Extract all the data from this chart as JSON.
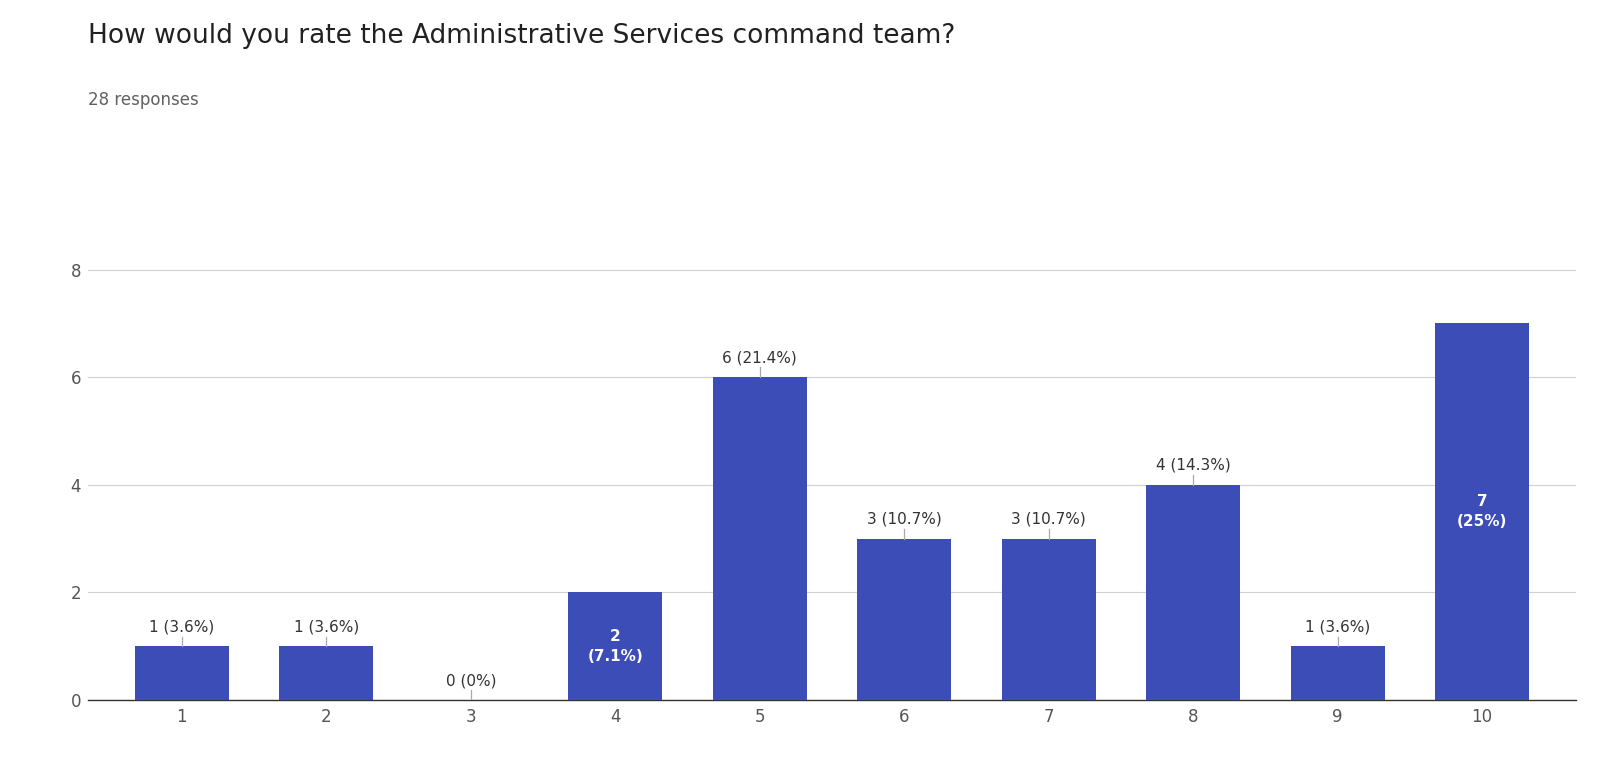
{
  "title": "How would you rate the Administrative Services command team?",
  "subtitle": "28 responses",
  "categories": [
    1,
    2,
    3,
    4,
    5,
    6,
    7,
    8,
    9,
    10
  ],
  "values": [
    1,
    1,
    0,
    2,
    6,
    3,
    3,
    4,
    1,
    7
  ],
  "labels": [
    "1 (3.6%)",
    "1 (3.6%)",
    "0 (0%)",
    "2\n(7.1%)",
    "6 (21.4%)",
    "3 (10.7%)",
    "3 (10.7%)",
    "4 (14.3%)",
    "1 (3.6%)",
    "7\n(25%)"
  ],
  "label_inside_cats": [
    4,
    10
  ],
  "bar_color": "#3d4db7",
  "background_color": "#ffffff",
  "ylim": [
    0,
    8.2
  ],
  "yticks": [
    0,
    2,
    4,
    6,
    8
  ],
  "title_fontsize": 19,
  "subtitle_fontsize": 12,
  "label_fontsize": 11,
  "tick_fontsize": 12,
  "grid_color": "#d0d0d0",
  "label_color_outside": "#333333",
  "label_color_inside": "#ffffff",
  "bar_width": 0.65
}
